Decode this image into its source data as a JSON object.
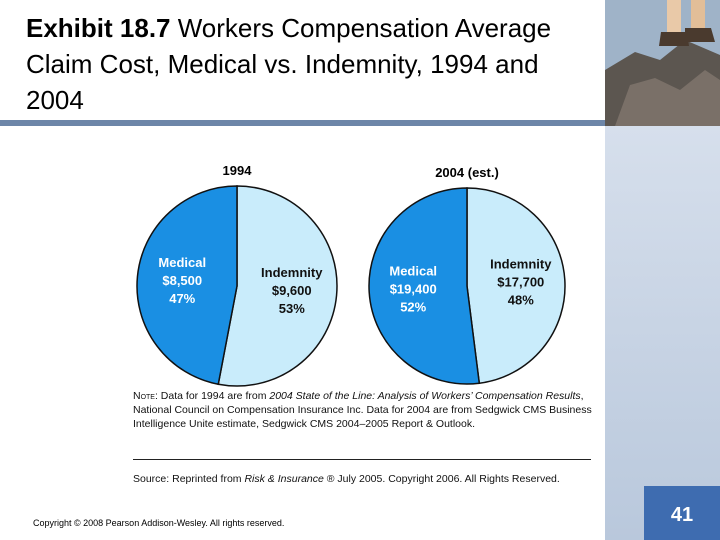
{
  "slide": {
    "title_bold": "Exhibit 18.7",
    "title_rest": " Workers Compensation Average Claim Cost, Medical vs. Indemnity, 1994 and 2004",
    "copyright": "Copyright © 2008 Pearson Addison-Wesley. All rights reserved.",
    "page_number": "41"
  },
  "colors": {
    "medical": "#1a8fe3",
    "indemnity": "#c9ecfb",
    "outline": "#111111",
    "medical_text": "#ffffff",
    "indemnity_text": "#111111"
  },
  "chart_data": [
    {
      "type": "pie",
      "title": "1994",
      "slices": [
        {
          "name": "Medical",
          "value_label": "$8,500",
          "value": 8500,
          "percent_label": "47%",
          "percent": 47
        },
        {
          "name": "Indemnity",
          "value_label": "$9,600",
          "value": 9600,
          "percent_label": "53%",
          "percent": 53
        }
      ]
    },
    {
      "type": "pie",
      "title": "2004 (est.)",
      "slices": [
        {
          "name": "Medical",
          "value_label": "$19,400",
          "value": 19400,
          "percent_label": "52%",
          "percent": 52
        },
        {
          "name": "Indemnity",
          "value_label": "$17,700",
          "value": 17700,
          "percent_label": "48%",
          "percent": 48
        }
      ]
    }
  ],
  "note": {
    "label": "Note:",
    "t1": " Data for 1994 are from ",
    "i1": "2004 State of the Line: Analysis of Workers’ Compensation Results",
    "t2": ", National Council on Compensation Insurance Inc. Data for 2004 are from Sedgwick CMS Business Intelligence Unite estimate, Sedgwick CMS 2004–2005 Report & Outlook."
  },
  "source": {
    "label": "Source:",
    "t1": " Reprinted from ",
    "i1": "Risk & Insurance",
    "t2": " ® July 2005. Copyright 2006. All Rights Reserved."
  }
}
